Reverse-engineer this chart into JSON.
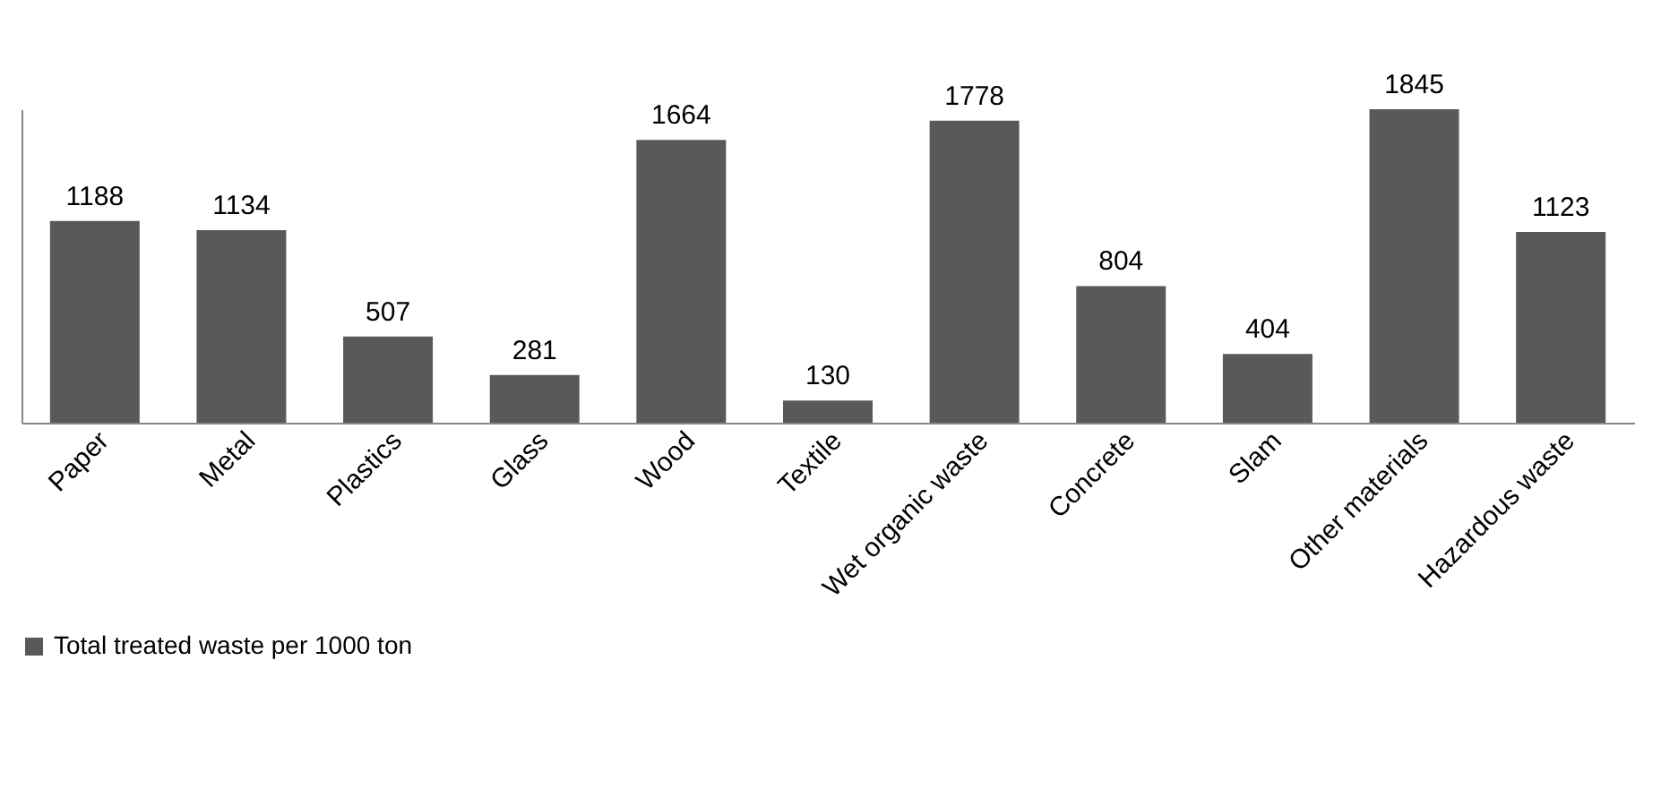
{
  "chart_data": {
    "type": "bar",
    "categories": [
      "Paper",
      "Metal",
      "Plastics",
      "Glass",
      "Wood",
      "Textile",
      "Wet organic waste",
      "Concrete",
      "Slam",
      "Other materials",
      "Hazardous waste"
    ],
    "series": [
      {
        "name": "Total treated waste per 1000 ton",
        "color": "#595959",
        "values": [
          1188,
          1134,
          507,
          281,
          1664,
          130,
          1778,
          804,
          404,
          1845,
          1123
        ]
      }
    ],
    "data_labels": true,
    "legend": "bottom",
    "grid": false
  }
}
